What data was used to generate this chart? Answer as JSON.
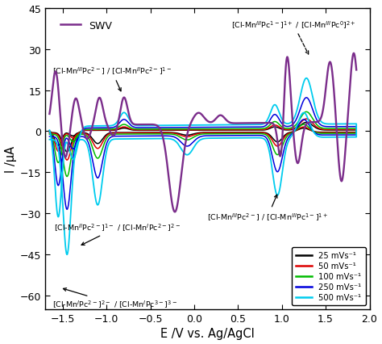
{
  "xlim": [
    -1.7,
    2.0
  ],
  "ylim": [
    -65,
    45
  ],
  "xlabel": "E /V vs. Ag/AgCl",
  "ylabel": "I /μA",
  "xticks": [
    -1.5,
    -1.0,
    -0.5,
    0.0,
    0.5,
    1.0,
    1.5,
    2.0
  ],
  "yticks": [
    -60,
    -45,
    -30,
    -15,
    0,
    15,
    30,
    45
  ],
  "cv_params": [
    {
      "scale": 1.0,
      "color": "#000000",
      "lw": 1.1
    },
    {
      "scale": 1.4,
      "color": "#dd0000",
      "lw": 1.1
    },
    {
      "scale": 2.2,
      "color": "#00bb00",
      "lw": 1.1
    },
    {
      "scale": 3.8,
      "color": "#0000dd",
      "lw": 1.1
    },
    {
      "scale": 6.0,
      "color": "#00ccee",
      "lw": 1.3
    }
  ],
  "legend_cv": [
    {
      "label": "25 mVs⁻¹",
      "color": "#000000"
    },
    {
      "label": "50 mVs⁻¹",
      "color": "#dd0000"
    },
    {
      "label": "100 mVs⁻¹",
      "color": "#00bb00"
    },
    {
      "label": "250 mVs⁻¹",
      "color": "#0000dd"
    },
    {
      "label": "500 mVs⁻¹",
      "color": "#00ccee"
    }
  ],
  "swv_color": "#7b2d8b",
  "swv_label": "SWV"
}
